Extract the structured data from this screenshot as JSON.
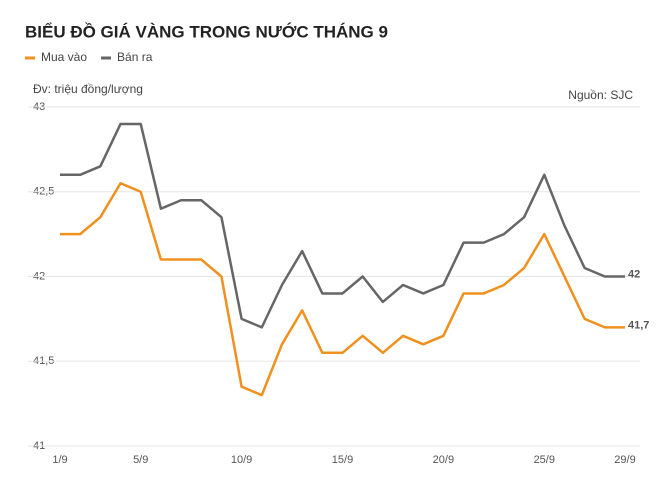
{
  "chart_data": {
    "type": "line",
    "title": "BIỂU ĐỒ GIÁ VÀNG TRONG NƯỚC THÁNG 9",
    "unit_label": "Đv: triệu đồng/lượng",
    "source": "Nguồn: SJC",
    "categories": [
      "1/9",
      null,
      null,
      null,
      "5/9",
      null,
      null,
      null,
      null,
      "10/9",
      null,
      null,
      null,
      null,
      "15/9",
      null,
      null,
      null,
      null,
      "20/9",
      null,
      null,
      null,
      null,
      "25/9",
      null,
      null,
      null,
      "29/9"
    ],
    "series": [
      {
        "name": "Mua vào",
        "color": "#f0901e",
        "values": [
          42.25,
          42.25,
          42.35,
          42.55,
          42.5,
          42.1,
          42.1,
          42.1,
          42.0,
          41.35,
          41.3,
          41.6,
          41.8,
          41.55,
          41.55,
          41.65,
          41.55,
          41.65,
          41.6,
          41.65,
          41.9,
          41.9,
          41.95,
          42.05,
          42.25,
          42.0,
          41.75,
          41.7,
          41.7
        ],
        "value_labels": [
          null,
          null,
          null,
          null,
          null,
          null,
          null,
          null,
          null,
          null,
          null,
          null,
          null,
          null,
          null,
          null,
          null,
          null,
          null,
          null,
          null,
          null,
          null,
          null,
          null,
          null,
          null,
          null,
          "41,7"
        ]
      },
      {
        "name": "Bán ra",
        "color": "#666666",
        "values": [
          42.6,
          42.6,
          42.65,
          42.9,
          42.9,
          42.4,
          42.45,
          42.45,
          42.35,
          41.75,
          41.7,
          41.95,
          42.15,
          41.9,
          41.9,
          42.0,
          41.85,
          41.95,
          41.9,
          41.95,
          42.2,
          42.2,
          42.25,
          42.35,
          42.6,
          42.3,
          42.05,
          42.0,
          42.0
        ],
        "value_labels": [
          null,
          null,
          null,
          null,
          null,
          null,
          null,
          null,
          null,
          null,
          null,
          null,
          null,
          null,
          null,
          null,
          null,
          null,
          null,
          null,
          null,
          null,
          null,
          null,
          null,
          null,
          null,
          null,
          "42"
        ]
      }
    ],
    "ylim": [
      41,
      43
    ],
    "yticks": [
      41,
      {
        "value": 41.5,
        "label": "41,5"
      },
      42,
      {
        "value": 42.5,
        "label": "42,5"
      },
      43
    ],
    "grid": true
  }
}
